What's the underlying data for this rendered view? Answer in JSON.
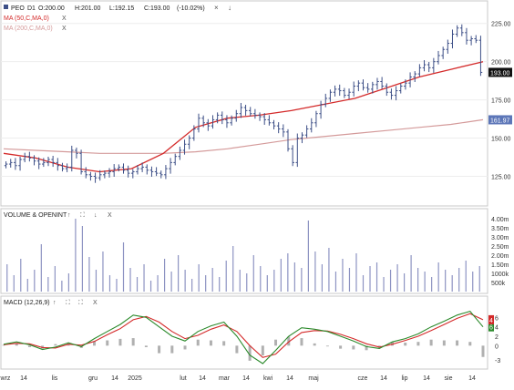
{
  "header": {
    "symbol": "PEO",
    "interval": "D1",
    "open": "O:200.00",
    "high": "H:201.00",
    "low": "L:192.15",
    "close": "C:193.00",
    "change": "(-10.02%)",
    "close_icon": "close-icon",
    "down_arrow_icon": "arrow-down-icon"
  },
  "indicators": {
    "ma50_label": "MA (50,C,MA,0)",
    "ma200_label": "MA (200,C,MA,0)",
    "close_glyph": "X"
  },
  "volume_panel": {
    "title": "VOLUME & OPENINT",
    "controls": [
      "↑",
      "⛶",
      "↓",
      "X"
    ]
  },
  "macd_panel": {
    "title": "MACD (12,26,9)",
    "controls": [
      "↑",
      "⛶",
      "⛶",
      "X"
    ]
  },
  "colors": {
    "candles": "#3d4f87",
    "ma50": "#d42a2a",
    "ma200": "#d49a9a",
    "volume": "#8d93c2",
    "macd_line": "#2b8a2b",
    "signal_line": "#d42a2a",
    "histogram": "#b0b0b0",
    "last_price_bg": "#111111",
    "ma200_tag_bg": "#5c76b8"
  },
  "chart_data": [
    {
      "type": "candlestick",
      "name": "price",
      "y_ticks": [
        "225.00",
        "200.00",
        "175.00",
        "150.00",
        "125.00"
      ],
      "ylim": [
        108,
        232
      ],
      "last_price_label": "193.00",
      "ma200_value_label": "161.97",
      "close_approx": [
        133,
        134,
        132,
        136,
        138,
        137,
        135,
        133,
        134,
        136,
        134,
        132,
        130,
        131,
        142,
        140,
        128,
        126,
        125,
        124,
        126,
        127,
        128,
        130,
        131,
        129,
        127,
        128,
        130,
        131,
        129,
        128,
        127,
        126,
        130,
        134,
        138,
        142,
        146,
        150,
        156,
        163,
        160,
        158,
        162,
        165,
        162,
        160,
        163,
        166,
        170,
        168,
        166,
        165,
        164,
        162,
        160,
        158,
        156,
        154,
        143,
        134,
        150,
        152,
        156,
        160,
        166,
        172,
        176,
        180,
        182,
        181,
        178,
        180,
        184,
        186,
        183,
        182,
        185,
        187,
        184,
        180,
        178,
        181,
        184,
        186,
        190,
        192,
        196,
        198,
        196,
        200,
        204,
        208,
        212,
        218,
        222,
        219,
        214,
        215,
        214,
        193
      ],
      "ma50_approx": [
        140,
        137,
        131,
        128,
        130,
        140,
        157,
        163,
        165,
        168,
        172,
        176,
        183,
        190,
        195,
        200
      ],
      "ma200_approx": [
        143,
        142,
        141,
        140,
        140,
        140,
        141,
        143,
        146,
        149,
        151,
        153,
        155,
        157,
        159,
        162
      ]
    },
    {
      "type": "bar",
      "name": "volume",
      "y_ticks": [
        "4.00m",
        "3.50m",
        "3.00m",
        "2.50m",
        "2.00m",
        "1.50m",
        "1000k",
        "500k"
      ],
      "ylim": [
        0,
        4200000
      ],
      "values_approx_k": [
        1500,
        900,
        1800,
        700,
        1200,
        2600,
        800,
        1400,
        600,
        1000,
        4000,
        3600,
        1900,
        1200,
        2200,
        900,
        700,
        2700,
        1300,
        800,
        1500,
        600,
        900,
        1800,
        1100,
        2000,
        1200,
        700,
        1500,
        900,
        1300,
        800,
        1700,
        2500,
        1200,
        1000,
        2000,
        1400,
        900,
        1200,
        1800,
        2100,
        1600,
        1300,
        3900,
        2200,
        1500,
        2400,
        1100,
        1800,
        1300,
        2100,
        900,
        1400,
        1600,
        800,
        1200,
        1500,
        1000,
        2000,
        1300,
        1100,
        800,
        1600,
        1200,
        900,
        1300,
        1700,
        1100,
        1400
      ]
    },
    {
      "type": "line",
      "name": "macd",
      "y_ticks": [
        "6",
        "4",
        "2",
        "0",
        "-3"
      ],
      "ylim": [
        -4,
        8
      ],
      "macd_approx": [
        0.3,
        0.8,
        0.2,
        -0.8,
        -0.3,
        0.6,
        -0.2,
        1.5,
        3.0,
        4.5,
        6.5,
        6.0,
        4.0,
        2.0,
        1.0,
        3.0,
        4.2,
        5.0,
        2.0,
        -2.0,
        -3.8,
        -1.0,
        2.0,
        3.8,
        3.5,
        3.0,
        2.0,
        1.0,
        -0.2,
        -0.6,
        0.8,
        1.5,
        2.5,
        4.0,
        5.2,
        6.5,
        7.3,
        4.0
      ],
      "signal_approx": [
        0.2,
        0.5,
        0.4,
        -0.4,
        -0.5,
        0.3,
        0.1,
        0.9,
        2.3,
        3.6,
        5.5,
        6.2,
        5.0,
        3.0,
        1.5,
        2.2,
        3.5,
        4.4,
        3.0,
        0.0,
        -2.5,
        -1.8,
        0.8,
        2.8,
        3.2,
        3.1,
        2.4,
        1.5,
        0.4,
        -0.3,
        0.3,
        1.1,
        2.0,
        3.2,
        4.5,
        5.8,
        6.8,
        5.5
      ]
    }
  ],
  "x_axis_labels": [
    "wrz",
    "14",
    "lis",
    "gru",
    "14",
    "2025",
    "lut",
    "14",
    "mar",
    "14",
    "kwi",
    "14",
    "maj",
    "cze",
    "14",
    "lip",
    "14",
    "sie",
    "14"
  ],
  "macd_tag_values": [
    "6",
    "4"
  ]
}
